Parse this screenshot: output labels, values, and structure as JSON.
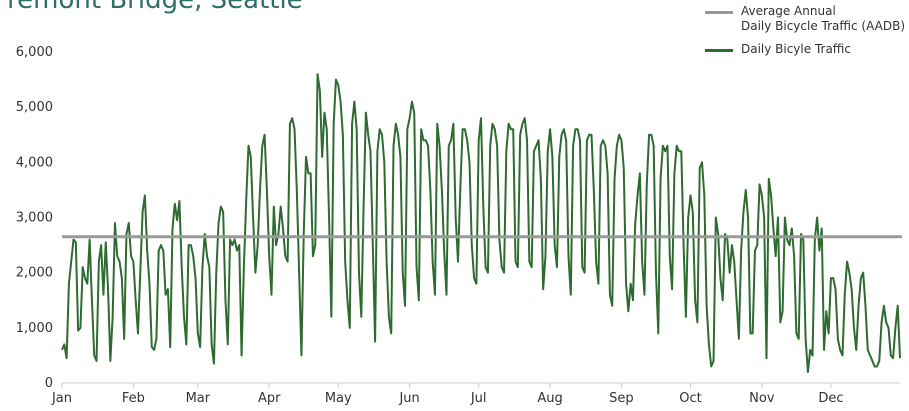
{
  "chart_data": {
    "type": "line",
    "title": "Fremont Bridge, Seattle",
    "categories": [
      "Jan",
      null,
      null,
      null,
      null,
      null,
      null,
      null,
      null,
      null,
      null,
      null,
      null,
      null,
      null,
      null,
      null,
      null,
      null,
      null,
      null,
      null,
      null,
      null,
      null,
      null,
      null,
      null,
      null,
      null,
      null,
      "Feb",
      null,
      null,
      null,
      null,
      null,
      null,
      null,
      null,
      null,
      null,
      null,
      null,
      null,
      null,
      null,
      null,
      null,
      null,
      null,
      null,
      null,
      null,
      null,
      null,
      null,
      null,
      null,
      "Mar",
      null,
      null,
      null,
      null,
      null,
      null,
      null,
      null,
      null,
      null,
      null,
      null,
      null,
      null,
      null,
      null,
      null,
      null,
      null,
      null,
      null,
      null,
      null,
      null,
      null,
      null,
      null,
      null,
      null,
      null,
      "Apr",
      null,
      null,
      null,
      null,
      null,
      null,
      null,
      null,
      null,
      null,
      null,
      null,
      null,
      null,
      null,
      null,
      null,
      null,
      null,
      null,
      null,
      null,
      null,
      null,
      null,
      null,
      null,
      null,
      null,
      "May",
      null,
      null,
      null,
      null,
      null,
      null,
      null,
      null,
      null,
      null,
      null,
      null,
      null,
      null,
      null,
      null,
      null,
      null,
      null,
      null,
      null,
      null,
      null,
      null,
      null,
      null,
      null,
      null,
      null,
      null,
      "Jun",
      null,
      null,
      null,
      null,
      null,
      null,
      null,
      null,
      null,
      null,
      null,
      null,
      null,
      null,
      null,
      null,
      null,
      null,
      null,
      null,
      null,
      null,
      null,
      null,
      null,
      null,
      null,
      null,
      null,
      "Jul",
      null,
      null,
      null,
      null,
      null,
      null,
      null,
      null,
      null,
      null,
      null,
      null,
      null,
      null,
      null,
      null,
      null,
      null,
      null,
      null,
      null,
      null,
      null,
      null,
      null,
      null,
      null,
      null,
      null,
      null,
      "Aug",
      null,
      null,
      null,
      null,
      null,
      null,
      null,
      null,
      null,
      null,
      null,
      null,
      null,
      null,
      null,
      null,
      null,
      null,
      null,
      null,
      null,
      null,
      null,
      null,
      null,
      null,
      null,
      null,
      null,
      null,
      "Sep",
      null,
      null,
      null,
      null,
      null,
      null,
      null,
      null,
      null,
      null,
      null,
      null,
      null,
      null,
      null,
      null,
      null,
      null,
      null,
      null,
      null,
      null,
      null,
      null,
      null,
      null,
      null,
      null,
      null,
      "Oct",
      null,
      null,
      null,
      null,
      null,
      null,
      null,
      null,
      null,
      null,
      null,
      null,
      null,
      null,
      null,
      null,
      null,
      null,
      null,
      null,
      null,
      null,
      null,
      null,
      null,
      null,
      null,
      null,
      null,
      null,
      "Nov",
      null,
      null,
      null,
      null,
      null,
      null,
      null,
      null,
      null,
      null,
      null,
      null,
      null,
      null,
      null,
      null,
      null,
      null,
      null,
      null,
      null,
      null,
      null,
      null,
      null,
      null,
      null,
      null,
      null,
      "Dec",
      null,
      null,
      null,
      null,
      null,
      null,
      null,
      null,
      null,
      null,
      null,
      null,
      null,
      null,
      null,
      null,
      null,
      null,
      null,
      null,
      null,
      null,
      null,
      null,
      null,
      null,
      null,
      null,
      null,
      null
    ],
    "series": [
      {
        "name": "Daily Bicyle Traffic",
        "color": "#2e6b30",
        "values": [
          600,
          700,
          450,
          1800,
          2200,
          2600,
          2550,
          950,
          1000,
          2100,
          1900,
          1800,
          2600,
          1500,
          500,
          400,
          2200,
          2500,
          1600,
          2550,
          1700,
          400,
          1200,
          2900,
          2300,
          2200,
          1900,
          800,
          2700,
          2900,
          2300,
          2200,
          1500,
          900,
          2000,
          3100,
          3400,
          2400,
          1800,
          650,
          600,
          800,
          2400,
          2500,
          2400,
          1600,
          1700,
          650,
          2800,
          3250,
          2950,
          3300,
          2100,
          1200,
          700,
          2500,
          2500,
          2300,
          1900,
          900,
          650,
          2100,
          2700,
          2300,
          2100,
          700,
          350,
          2000,
          2900,
          3200,
          3100,
          1500,
          700,
          2600,
          2500,
          2600,
          2400,
          2500,
          500,
          2100,
          3300,
          4300,
          4100,
          3000,
          2000,
          2500,
          3500,
          4300,
          4500,
          3500,
          2300,
          1600,
          3200,
          2500,
          2700,
          3200,
          2800,
          2300,
          2200,
          4700,
          4800,
          4600,
          3500,
          2000,
          500,
          2700,
          4100,
          3800,
          3800,
          2300,
          2500,
          5600,
          5300,
          4100,
          4900,
          4600,
          3000,
          1200,
          4700,
          5500,
          5400,
          5100,
          4500,
          2200,
          1500,
          1000,
          4700,
          5100,
          4600,
          2000,
          1200,
          3200,
          4900,
          4500,
          4200,
          2500,
          750,
          4200,
          4600,
          4500,
          4000,
          2200,
          1200,
          900,
          4300,
          4700,
          4500,
          4100,
          2000,
          1400,
          4600,
          4800,
          5100,
          4900,
          2100,
          1500,
          4600,
          4400,
          4400,
          4300,
          3500,
          2200,
          1600,
          4700,
          4300,
          3500,
          2400,
          1600,
          4300,
          4400,
          4700,
          3000,
          2200,
          3500,
          4600,
          4600,
          4400,
          4000,
          2500,
          1900,
          1800,
          4400,
          4800,
          3200,
          2100,
          2000,
          4300,
          4700,
          4600,
          4300,
          2600,
          2100,
          2000,
          4200,
          4700,
          4600,
          4600,
          2200,
          2100,
          4500,
          4700,
          4800,
          4400,
          2200,
          2100,
          4200,
          4300,
          4400,
          3700,
          1700,
          2300,
          4200,
          4600,
          4100,
          2500,
          2100,
          4100,
          4500,
          4600,
          4400,
          2300,
          1600,
          4300,
          4600,
          4600,
          4400,
          2100,
          2000,
          4400,
          4500,
          4500,
          3500,
          2200,
          1800,
          4300,
          4400,
          4300,
          3800,
          1600,
          1400,
          3700,
          4300,
          4500,
          4400,
          3900,
          1800,
          1300,
          1800,
          1500,
          2900,
          3400,
          3800,
          2200,
          1600,
          3600,
          4500,
          4500,
          4300,
          2000,
          900,
          3700,
          4300,
          4200,
          4300,
          2300,
          1700,
          3800,
          4300,
          4200,
          4200,
          2500,
          1200,
          3000,
          3400,
          3100,
          1500,
          1100,
          3900,
          4000,
          3400,
          1400,
          700,
          300,
          400,
          3000,
          2700,
          1900,
          1500,
          2700,
          2600,
          2000,
          2500,
          2200,
          1500,
          800,
          2400,
          3100,
          3500,
          3000,
          900,
          900,
          2400,
          2500,
          3600,
          3400,
          3000,
          450,
          3700,
          3400,
          2800,
          2300,
          3000,
          1100,
          1300,
          3000,
          2600,
          2500,
          2800,
          2300,
          900,
          800,
          2700,
          2600,
          800,
          200,
          600,
          500,
          2600,
          3000,
          2400,
          2800,
          600,
          1300,
          900,
          1900,
          1900,
          1700,
          800,
          600,
          500,
          1600,
          2200,
          2000,
          1700,
          1000,
          600,
          1400,
          1900,
          2000,
          1400,
          600,
          500,
          400,
          300,
          300,
          400,
          1100,
          1400,
          1100,
          1000,
          500,
          450,
          1000,
          1400,
          450
        ]
      }
    ],
    "average": {
      "name": "Average Annual\nDaily Bicycle Traffic (AADB)",
      "color": "#999999",
      "value": 2650
    },
    "ylim": [
      0,
      6000
    ],
    "yticks": [
      0,
      {
        "value": 1000,
        "label": "1,000"
      },
      {
        "value": 2000,
        "label": "2,000"
      },
      {
        "value": 3000,
        "label": "3,000"
      },
      {
        "value": 4000,
        "label": "4,000"
      },
      {
        "value": 5000,
        "label": "5,000"
      },
      {
        "value": 6000,
        "label": "6,000"
      }
    ],
    "grid": false,
    "legend": "top-right"
  }
}
